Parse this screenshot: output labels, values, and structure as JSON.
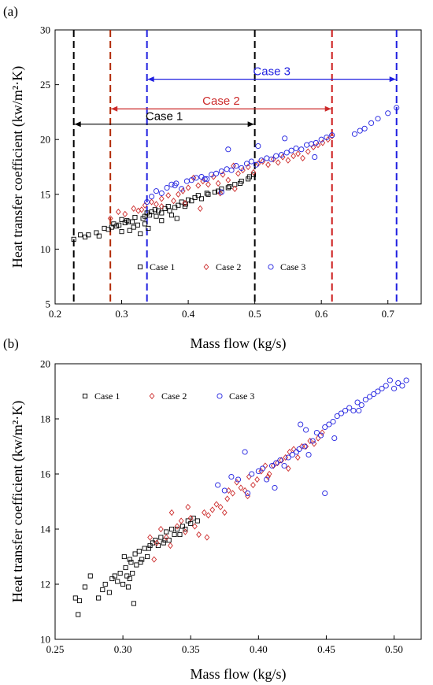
{
  "chart_data": [
    {
      "panel": "(a)",
      "type": "scatter",
      "xlabel": "Mass flow (kg/s)",
      "ylabel": "Heat transfer coefficient (kw/m²·K)",
      "xlim": [
        0.2,
        0.75
      ],
      "ylim": [
        5,
        30
      ],
      "xticks": [
        0.2,
        0.3,
        0.4,
        0.5,
        0.6,
        0.7
      ],
      "yticks": [
        5,
        10,
        15,
        20,
        25,
        30
      ],
      "xtick_labels": [
        "0.2",
        "0.3",
        "0.4",
        "0.5",
        "0.6",
        "0.7"
      ],
      "ytick_labels": [
        "5",
        "10",
        "15",
        "20",
        "25",
        "30"
      ],
      "legend_position": "bottom-center",
      "vlines": [
        {
          "x": 0.228,
          "color": "#000000"
        },
        {
          "x": 0.5,
          "color": "#000000"
        },
        {
          "x": 0.283,
          "color": "#b22a00"
        },
        {
          "x": 0.616,
          "color": "#cc1a1a"
        },
        {
          "x": 0.338,
          "color": "#1f1fe0"
        },
        {
          "x": 0.713,
          "color": "#1f1fe0"
        }
      ],
      "ranges": [
        {
          "label": "Case 1",
          "from": 0.228,
          "to": 0.5,
          "y": 21.4,
          "color": "#000000"
        },
        {
          "label": "Case 2",
          "from": 0.283,
          "to": 0.616,
          "y": 22.8,
          "color": "#cc2a2a"
        },
        {
          "label": "Case 3",
          "from": 0.338,
          "to": 0.713,
          "y": 25.5,
          "color": "#1f1fe0"
        }
      ],
      "series": [
        {
          "name": "Case 1",
          "marker": "square",
          "color": "#000000",
          "x": [
            0.228,
            0.238,
            0.245,
            0.25,
            0.262,
            0.266,
            0.274,
            0.28,
            0.285,
            0.288,
            0.292,
            0.296,
            0.3,
            0.305,
            0.308,
            0.312,
            0.316,
            0.32,
            0.324,
            0.328,
            0.332,
            0.335,
            0.338,
            0.342,
            0.345,
            0.35,
            0.355,
            0.36,
            0.365,
            0.37,
            0.375,
            0.38,
            0.385,
            0.39,
            0.396,
            0.4,
            0.41,
            0.42,
            0.43,
            0.44,
            0.45,
            0.46,
            0.47,
            0.48,
            0.49,
            0.498,
            0.3,
            0.31,
            0.318,
            0.335,
            0.352,
            0.372,
            0.383,
            0.395,
            0.405,
            0.415,
            0.428,
            0.445,
            0.462,
            0.478,
            0.492,
            0.34,
            0.36
          ],
          "y": [
            10.9,
            11.3,
            11.1,
            11.3,
            11.5,
            11.2,
            11.9,
            11.8,
            12.0,
            12.3,
            12.1,
            12.2,
            11.6,
            12.4,
            12.6,
            11.7,
            12.5,
            12.9,
            12.2,
            11.4,
            12.8,
            13.0,
            13.3,
            13.1,
            13.4,
            13.6,
            13.5,
            13.3,
            13.7,
            13.9,
            13.1,
            13.8,
            14.0,
            14.3,
            14.1,
            14.5,
            14.7,
            14.6,
            15.0,
            15.2,
            15.5,
            15.6,
            15.9,
            16.2,
            16.4,
            16.8,
            12.7,
            12.5,
            12.0,
            12.3,
            13.0,
            13.5,
            12.8,
            13.9,
            14.4,
            14.9,
            15.1,
            15.3,
            15.7,
            16.0,
            16.6,
            11.9,
            12.6
          ]
        },
        {
          "name": "Case 2",
          "marker": "diamond",
          "color": "#cc2a2a",
          "x": [
            0.283,
            0.295,
            0.305,
            0.318,
            0.325,
            0.335,
            0.345,
            0.352,
            0.36,
            0.37,
            0.378,
            0.385,
            0.392,
            0.4,
            0.408,
            0.415,
            0.422,
            0.43,
            0.438,
            0.445,
            0.452,
            0.46,
            0.468,
            0.475,
            0.482,
            0.49,
            0.498,
            0.505,
            0.512,
            0.52,
            0.528,
            0.535,
            0.542,
            0.55,
            0.558,
            0.565,
            0.572,
            0.58,
            0.588,
            0.595,
            0.602,
            0.61,
            0.616,
            0.33,
            0.36,
            0.395,
            0.418,
            0.448,
            0.47
          ],
          "y": [
            12.8,
            13.4,
            13.2,
            13.7,
            13.5,
            14.0,
            14.3,
            14.1,
            14.6,
            14.9,
            14.4,
            15.0,
            15.3,
            15.6,
            16.5,
            15.8,
            16.2,
            15.9,
            16.6,
            16.0,
            16.8,
            16.3,
            17.6,
            16.9,
            17.2,
            17.5,
            17.0,
            17.8,
            18.0,
            17.7,
            18.2,
            17.9,
            18.4,
            18.1,
            18.5,
            18.7,
            18.3,
            18.9,
            19.3,
            19.5,
            19.7,
            20.0,
            20.3,
            13.6,
            13.9,
            14.2,
            13.7,
            15.1,
            15.5
          ]
        },
        {
          "name": "Case 3",
          "marker": "circle",
          "color": "#1f1fe0",
          "x": [
            0.338,
            0.345,
            0.352,
            0.36,
            0.368,
            0.375,
            0.382,
            0.39,
            0.398,
            0.405,
            0.412,
            0.42,
            0.428,
            0.435,
            0.442,
            0.45,
            0.458,
            0.465,
            0.472,
            0.48,
            0.488,
            0.495,
            0.502,
            0.51,
            0.518,
            0.525,
            0.532,
            0.54,
            0.548,
            0.555,
            0.562,
            0.57,
            0.578,
            0.585,
            0.592,
            0.6,
            0.608,
            0.616,
            0.65,
            0.658,
            0.665,
            0.675,
            0.685,
            0.7,
            0.713,
            0.38,
            0.425,
            0.46,
            0.505,
            0.545,
            0.59,
            0.45
          ],
          "y": [
            14.3,
            14.8,
            15.3,
            15.1,
            15.6,
            15.9,
            16.0,
            15.5,
            16.2,
            16.3,
            16.5,
            16.6,
            16.4,
            16.8,
            16.9,
            17.1,
            17.3,
            17.2,
            17.6,
            17.4,
            17.8,
            18.0,
            17.7,
            18.1,
            18.3,
            18.2,
            18.5,
            18.6,
            18.8,
            19.0,
            19.2,
            19.1,
            19.5,
            19.6,
            19.7,
            20.0,
            20.2,
            20.4,
            20.5,
            20.8,
            21.0,
            21.5,
            21.9,
            22.4,
            22.9,
            15.8,
            16.4,
            19.1,
            19.4,
            20.1,
            18.4,
            15.2
          ]
        }
      ]
    },
    {
      "panel": "(b)",
      "type": "scatter",
      "xlabel": "Mass flow (kg/s)",
      "ylabel": "Heat transfer coefficient (kw/m²·K)",
      "xlim": [
        0.25,
        0.52
      ],
      "ylim": [
        10,
        20
      ],
      "xticks": [
        0.25,
        0.3,
        0.35,
        0.4,
        0.45,
        0.5
      ],
      "yticks": [
        10,
        12,
        14,
        16,
        18,
        20
      ],
      "xtick_labels": [
        "0.25",
        "0.30",
        "0.35",
        "0.40",
        "0.45",
        "0.50"
      ],
      "ytick_labels": [
        "10",
        "12",
        "14",
        "16",
        "18",
        "20"
      ],
      "legend_position": "top-left",
      "series": [
        {
          "name": "Case 1",
          "marker": "square",
          "color": "#000000",
          "x": [
            0.265,
            0.267,
            0.272,
            0.276,
            0.282,
            0.285,
            0.287,
            0.29,
            0.292,
            0.294,
            0.296,
            0.298,
            0.3,
            0.301,
            0.302,
            0.303,
            0.304,
            0.305,
            0.306,
            0.307,
            0.308,
            0.31,
            0.312,
            0.314,
            0.316,
            0.318,
            0.32,
            0.322,
            0.324,
            0.326,
            0.328,
            0.33,
            0.332,
            0.334,
            0.336,
            0.338,
            0.34,
            0.342,
            0.344,
            0.346,
            0.348,
            0.35,
            0.352,
            0.355,
            0.268,
            0.305,
            0.309,
            0.313,
            0.319,
            0.331
          ],
          "y": [
            11.5,
            10.9,
            11.9,
            12.3,
            11.5,
            11.8,
            12.0,
            11.7,
            12.2,
            12.3,
            12.1,
            12.4,
            12.0,
            13.0,
            12.6,
            12.3,
            11.9,
            12.9,
            12.8,
            12.4,
            11.3,
            12.7,
            13.2,
            12.9,
            13.3,
            13.0,
            13.4,
            13.5,
            13.6,
            13.4,
            13.7,
            13.5,
            13.9,
            13.6,
            14.0,
            13.8,
            14.0,
            13.8,
            14.1,
            14.0,
            14.3,
            14.2,
            14.4,
            14.3,
            11.4,
            12.2,
            13.1,
            12.8,
            13.3,
            13.6
          ]
        },
        {
          "name": "Case 2",
          "marker": "diamond",
          "color": "#cc2a2a",
          "x": [
            0.32,
            0.325,
            0.328,
            0.332,
            0.336,
            0.34,
            0.343,
            0.346,
            0.35,
            0.353,
            0.356,
            0.36,
            0.363,
            0.366,
            0.369,
            0.372,
            0.375,
            0.378,
            0.381,
            0.384,
            0.387,
            0.39,
            0.393,
            0.396,
            0.399,
            0.402,
            0.405,
            0.408,
            0.411,
            0.414,
            0.417,
            0.42,
            0.423,
            0.426,
            0.429,
            0.432,
            0.435,
            0.438,
            0.441,
            0.444,
            0.447,
            0.323,
            0.335,
            0.348,
            0.362,
            0.377,
            0.392,
            0.407,
            0.422
          ],
          "y": [
            13.7,
            13.5,
            14.0,
            13.7,
            14.6,
            14.1,
            14.3,
            13.9,
            14.4,
            14.1,
            13.8,
            14.6,
            14.5,
            14.7,
            14.9,
            14.8,
            14.6,
            15.4,
            15.3,
            15.7,
            15.5,
            15.4,
            15.9,
            15.6,
            15.8,
            16.1,
            16.3,
            16.0,
            16.3,
            16.4,
            16.5,
            16.6,
            16.8,
            16.9,
            16.6,
            17.0,
            17.0,
            17.2,
            17.1,
            17.3,
            17.5,
            12.9,
            13.4,
            14.8,
            13.7,
            15.1,
            15.2,
            15.9,
            16.2
          ]
        },
        {
          "name": "Case 3",
          "marker": "circle",
          "color": "#1f1fe0",
          "x": [
            0.37,
            0.375,
            0.38,
            0.385,
            0.39,
            0.395,
            0.4,
            0.403,
            0.406,
            0.41,
            0.413,
            0.416,
            0.419,
            0.422,
            0.425,
            0.428,
            0.431,
            0.434,
            0.437,
            0.44,
            0.443,
            0.446,
            0.449,
            0.452,
            0.455,
            0.458,
            0.461,
            0.464,
            0.467,
            0.47,
            0.473,
            0.476,
            0.479,
            0.482,
            0.485,
            0.488,
            0.491,
            0.494,
            0.497,
            0.5,
            0.503,
            0.506,
            0.509,
            0.392,
            0.412,
            0.43,
            0.449,
            0.435,
            0.456,
            0.474
          ],
          "y": [
            15.6,
            15.4,
            15.9,
            15.8,
            16.8,
            16.0,
            16.1,
            16.2,
            15.8,
            16.3,
            16.4,
            16.5,
            16.3,
            16.6,
            16.7,
            16.8,
            17.8,
            17.0,
            16.7,
            17.2,
            17.5,
            17.4,
            17.7,
            17.8,
            17.9,
            18.1,
            18.2,
            18.3,
            18.4,
            18.3,
            18.6,
            18.5,
            18.7,
            18.8,
            18.9,
            19.0,
            19.1,
            19.2,
            19.4,
            19.1,
            19.3,
            19.2,
            19.4,
            15.3,
            15.5,
            16.9,
            15.3,
            17.6,
            17.3,
            18.3
          ]
        }
      ]
    }
  ]
}
